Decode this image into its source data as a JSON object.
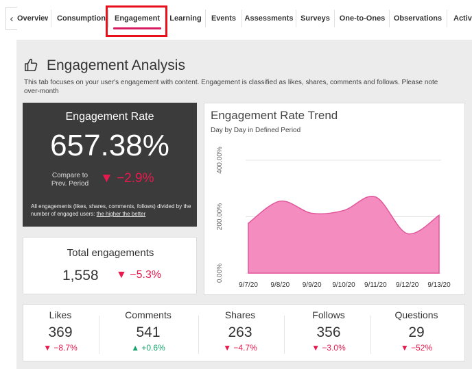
{
  "tabs": [
    {
      "label": "Overview"
    },
    {
      "label": "Consumption"
    },
    {
      "label": "Engagement"
    },
    {
      "label": "Learning"
    },
    {
      "label": "Events"
    },
    {
      "label": "Assessments"
    },
    {
      "label": "Surveys"
    },
    {
      "label": "One-to-Ones"
    },
    {
      "label": "Observations"
    },
    {
      "label": "Active"
    }
  ],
  "back_glyph": "‹",
  "page": {
    "title": "Engagement Analysis",
    "icon": "thumbs-up-icon",
    "description_line1": "This tab focuses on your user's engagement with content. Engagement is classified as likes, shares, comments and follows. Please note",
    "description_line2": "over-month"
  },
  "rate_card": {
    "title": "Engagement Rate",
    "value": "657.38%",
    "compare_line1": "Compare to",
    "compare_line2": "Prev. Period",
    "change": "▼ −2.9%",
    "note_prefix": "All engagements (likes, shares, comments, follows) divided by the number of engaged users:",
    "note_link": "the higher the better",
    "bg_color": "#3b3b3b",
    "negative_color": "#e8194e"
  },
  "total_card": {
    "title": "Total engagements",
    "value": "1,558",
    "change": "▼ −5.3%"
  },
  "trend": {
    "title": "Engagement Rate Trend",
    "subtitle": "Day by Day in Defined Period",
    "fill_color": "#f48cc0",
    "stroke_color": "#e0579a"
  },
  "chart_data": {
    "type": "area",
    "title": "Engagement Rate Trend",
    "subtitle": "Day by Day in Defined Period",
    "categories": [
      "9/7/20",
      "9/8/20",
      "9/9/20",
      "9/10/20",
      "9/11/20",
      "9/12/20",
      "9/13/20"
    ],
    "values": [
      177,
      255,
      212,
      222,
      270,
      140,
      205
    ],
    "y_ticks": [
      "0.00%",
      "200.00%",
      "400.00%"
    ],
    "ylim": [
      0,
      400
    ],
    "grid": true
  },
  "stats": [
    {
      "label": "Likes",
      "value": "369",
      "change": "▼ −8.7%",
      "direction": "down"
    },
    {
      "label": "Comments",
      "value": "541",
      "change": "▲ +0.6%",
      "direction": "up"
    },
    {
      "label": "Shares",
      "value": "263",
      "change": "▼ −4.7%",
      "direction": "down"
    },
    {
      "label": "Follows",
      "value": "356",
      "change": "▼ −3.0%",
      "direction": "down"
    },
    {
      "label": "Questions",
      "value": "29",
      "change": "▼ −52%",
      "direction": "down"
    }
  ]
}
